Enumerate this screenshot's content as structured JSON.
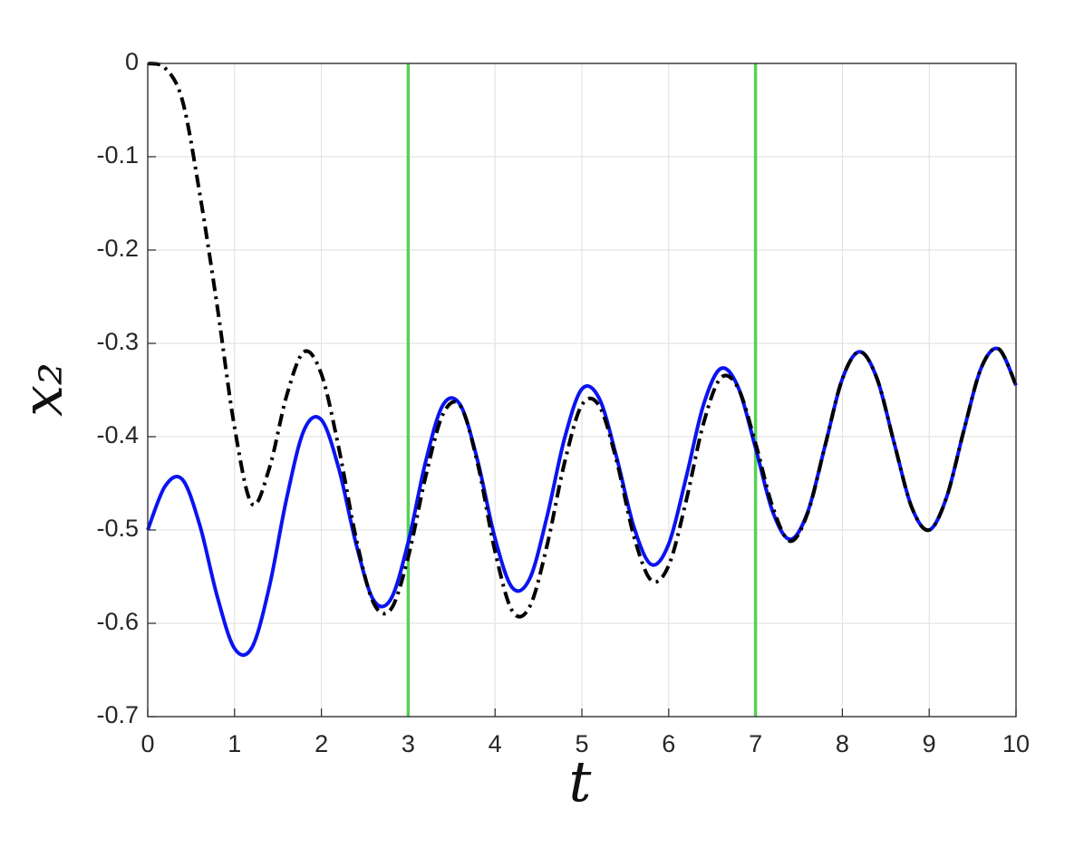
{
  "chart_data": {
    "type": "line",
    "xlabel": "t",
    "ylabel": "x₂",
    "x": [
      0,
      0.2,
      0.4,
      0.6,
      0.8,
      1,
      1.2,
      1.4,
      1.6,
      1.8,
      2,
      2.2,
      2.4,
      2.6,
      2.8,
      3,
      3.2,
      3.4,
      3.6,
      3.8,
      4,
      4.2,
      4.4,
      4.6,
      4.8,
      5,
      5.2,
      5.4,
      5.6,
      5.8,
      6,
      6.2,
      6.4,
      6.6,
      6.8,
      7,
      7.2,
      7.4,
      7.6,
      7.8,
      8,
      8.2,
      8.4,
      8.6,
      8.8,
      9,
      9.2,
      9.4,
      9.6,
      9.8,
      10
    ],
    "series": [
      {
        "color": "#0a14f0",
        "style": "solid",
        "values": [
          -0.5,
          -0.453,
          -0.446,
          -0.495,
          -0.571,
          -0.627,
          -0.626,
          -0.561,
          -0.466,
          -0.393,
          -0.382,
          -0.434,
          -0.515,
          -0.575,
          -0.574,
          -0.513,
          -0.427,
          -0.366,
          -0.366,
          -0.426,
          -0.509,
          -0.562,
          -0.552,
          -0.485,
          -0.402,
          -0.349,
          -0.359,
          -0.422,
          -0.497,
          -0.537,
          -0.515,
          -0.444,
          -0.366,
          -0.327,
          -0.347,
          -0.412,
          -0.481,
          -0.51,
          -0.481,
          -0.41,
          -0.338,
          -0.309,
          -0.338,
          -0.408,
          -0.476,
          -0.5,
          -0.465,
          -0.393,
          -0.326,
          -0.306,
          -0.345
        ]
      },
      {
        "color": "#000000",
        "style": "dashdot",
        "values": [
          0,
          -0.005,
          -0.04,
          -0.14,
          -0.26,
          -0.39,
          -0.472,
          -0.434,
          -0.356,
          -0.309,
          -0.333,
          -0.412,
          -0.509,
          -0.578,
          -0.585,
          -0.529,
          -0.443,
          -0.376,
          -0.367,
          -0.429,
          -0.523,
          -0.587,
          -0.582,
          -0.516,
          -0.428,
          -0.366,
          -0.367,
          -0.426,
          -0.507,
          -0.554,
          -0.538,
          -0.469,
          -0.386,
          -0.337,
          -0.348,
          -0.407,
          -0.476,
          -0.512,
          -0.482,
          -0.41,
          -0.338,
          -0.309,
          -0.338,
          -0.408,
          -0.476,
          -0.5,
          -0.465,
          -0.393,
          -0.326,
          -0.306,
          -0.345
        ]
      }
    ],
    "vlines": [
      3,
      7
    ],
    "vline_color": "#55d155",
    "xlim": [
      0,
      10
    ],
    "xticks": [
      0,
      1,
      2,
      3,
      4,
      5,
      6,
      7,
      8,
      9,
      10
    ],
    "ylim": [
      -0.7,
      0
    ],
    "yticks": [
      -0.7,
      -0.6,
      -0.5,
      -0.4,
      -0.3,
      -0.2,
      -0.1,
      0
    ],
    "grid": true
  }
}
